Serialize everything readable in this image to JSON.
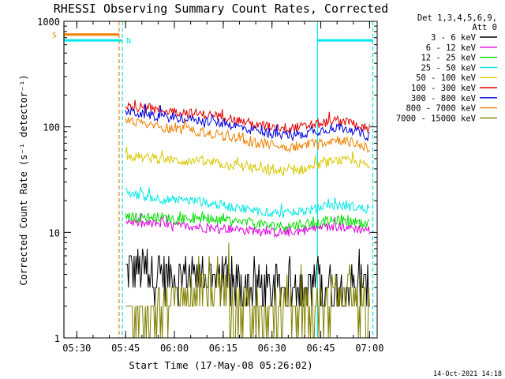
{
  "chart_data": {
    "type": "line",
    "title": "RHESSI Observing Summary Count Rates, Corrected",
    "xlabel": "Start Time (17-May-08 05:26:02)",
    "ylabel": "Corrected Count Rate (s⁻¹ detector⁻¹)",
    "x_ticks": [
      "05:30",
      "05:45",
      "06:00",
      "06:15",
      "06:30",
      "06:45",
      "07:00"
    ],
    "y_ticks": [
      "1",
      "10",
      "100",
      "1000"
    ],
    "y_scale": "log",
    "ylim": [
      1,
      1000
    ],
    "xlim": [
      "05:26:02",
      "07:02:20"
    ],
    "grid": false,
    "legend_position": "right",
    "detector_header": "Det 1,3,4,5,6,9,",
    "attenuator": "Att 0",
    "series": [
      {
        "name": "3 - 6 keV",
        "color": "#000000",
        "x": [
          "05:45",
          "05:50",
          "05:55",
          "06:00",
          "06:05",
          "06:10",
          "06:15",
          "06:20",
          "06:25",
          "06:30",
          "06:35",
          "06:40",
          "06:45",
          "06:50",
          "06:55",
          "07:00"
        ],
        "values": [
          4.6,
          4.3,
          4.0,
          3.8,
          3.9,
          3.8,
          3.4,
          3.2,
          3.0,
          2.8,
          2.7,
          2.8,
          3.0,
          3.2,
          3.1,
          2.9
        ]
      },
      {
        "name": "6 - 12 keV",
        "color": "#e000e0",
        "x": [
          "05:45",
          "05:50",
          "05:55",
          "06:00",
          "06:05",
          "06:10",
          "06:15",
          "06:20",
          "06:25",
          "06:30",
          "06:35",
          "06:40",
          "06:45",
          "06:50",
          "06:55",
          "07:00"
        ],
        "values": [
          13,
          12,
          12,
          11.5,
          11.5,
          11,
          11,
          10.5,
          10.5,
          10,
          10,
          10.5,
          11,
          11.5,
          11,
          10.5
        ]
      },
      {
        "name": "12 - 25 keV",
        "color": "#00e000",
        "x": [
          "05:45",
          "05:50",
          "05:55",
          "06:00",
          "06:05",
          "06:10",
          "06:15",
          "06:20",
          "06:25",
          "06:30",
          "06:35",
          "06:40",
          "06:45",
          "06:50",
          "06:55",
          "07:00"
        ],
        "values": [
          14,
          14,
          14,
          13.5,
          13.5,
          13,
          13,
          12.5,
          12,
          11.5,
          11.5,
          12,
          12.5,
          13,
          12.5,
          12
        ]
      },
      {
        "name": "25 - 50 keV",
        "color": "#00e8e8",
        "x": [
          "05:45",
          "05:50",
          "05:55",
          "06:00",
          "06:05",
          "06:10",
          "06:15",
          "06:20",
          "06:25",
          "06:30",
          "06:35",
          "06:40",
          "06:45",
          "06:50",
          "06:55",
          "07:00"
        ],
        "values": [
          24,
          22,
          21,
          20,
          20,
          19,
          18,
          17,
          16,
          15.5,
          15,
          16,
          17,
          18,
          17.5,
          16.5
        ]
      },
      {
        "name": "50 - 100 keV",
        "color": "#d8c800",
        "x": [
          "05:45",
          "05:50",
          "05:55",
          "06:00",
          "06:05",
          "06:10",
          "06:15",
          "06:20",
          "06:25",
          "06:30",
          "06:35",
          "06:40",
          "06:45",
          "06:50",
          "06:55",
          "07:00"
        ],
        "values": [
          53,
          51,
          50,
          48,
          47,
          46,
          44,
          42,
          40,
          38,
          38,
          40,
          44,
          48,
          47,
          42
        ]
      },
      {
        "name": "100 - 300 keV",
        "color": "#e00000",
        "x": [
          "05:45",
          "05:50",
          "05:55",
          "06:00",
          "06:05",
          "06:10",
          "06:15",
          "06:20",
          "06:25",
          "06:30",
          "06:35",
          "06:40",
          "06:45",
          "06:50",
          "06:55",
          "07:00"
        ],
        "values": [
          160,
          150,
          145,
          140,
          135,
          130,
          125,
          115,
          105,
          100,
          98,
          100,
          108,
          115,
          108,
          96
        ]
      },
      {
        "name": "300 - 800 keV",
        "color": "#0000e0",
        "x": [
          "05:45",
          "05:50",
          "05:55",
          "06:00",
          "06:05",
          "06:10",
          "06:15",
          "06:20",
          "06:25",
          "06:30",
          "06:35",
          "06:40",
          "06:45",
          "06:50",
          "06:55",
          "07:00"
        ],
        "values": [
          142,
          132,
          126,
          122,
          118,
          113,
          108,
          100,
          91,
          86,
          84,
          86,
          93,
          99,
          93,
          80
        ]
      },
      {
        "name": "800 - 7000 keV",
        "color": "#f08000",
        "x": [
          "05:45",
          "05:50",
          "05:55",
          "06:00",
          "06:05",
          "06:10",
          "06:15",
          "06:20",
          "06:25",
          "06:30",
          "06:35",
          "06:40",
          "06:45",
          "06:50",
          "06:55",
          "07:00"
        ],
        "values": [
          118,
          106,
          100,
          96,
          92,
          88,
          82,
          76,
          70,
          66,
          64,
          66,
          71,
          76,
          71,
          62
        ]
      },
      {
        "name": "7000 - 15000 keV",
        "color": "#808000",
        "x": [
          "05:45",
          "05:50",
          "05:55",
          "06:00",
          "06:05",
          "06:10",
          "06:15",
          "06:20",
          "06:25",
          "06:30",
          "06:35",
          "06:40",
          "06:45",
          "06:50",
          "06:55",
          "07:00"
        ],
        "values": [
          1.6,
          1.5,
          1.6,
          2.2,
          2.6,
          2.7,
          2.4,
          2.0,
          1.9,
          1.8,
          1.6,
          1.7,
          2.2,
          2.5,
          2.3,
          2.1
        ]
      }
    ],
    "saa_flag": {
      "label": "S",
      "color": "#f08000",
      "x_end": "05:43",
      "value": 750
    },
    "night_flags": [
      {
        "label": "N",
        "color": "#00e8e8",
        "x_start": "05:26:02",
        "x_end": "05:44",
        "value": 660
      },
      {
        "label": "",
        "color": "#00e8e8",
        "x_start": "06:44",
        "x_end": "07:01",
        "value": 660
      }
    ],
    "vertical_markers": [
      {
        "x": "05:26:02",
        "color": "#00c000",
        "style": "solid"
      },
      {
        "x": "05:43",
        "color": "#f08000",
        "style": "dashed"
      },
      {
        "x": "05:44",
        "color": "#00e8e8",
        "style": "dashed"
      },
      {
        "x": "06:44",
        "color": "#00e8e8",
        "style": "solid"
      },
      {
        "x": "07:01",
        "color": "#00e8e8",
        "style": "dashed"
      }
    ]
  },
  "footer": {
    "timestamp": "14-Oct-2021 14:18"
  }
}
